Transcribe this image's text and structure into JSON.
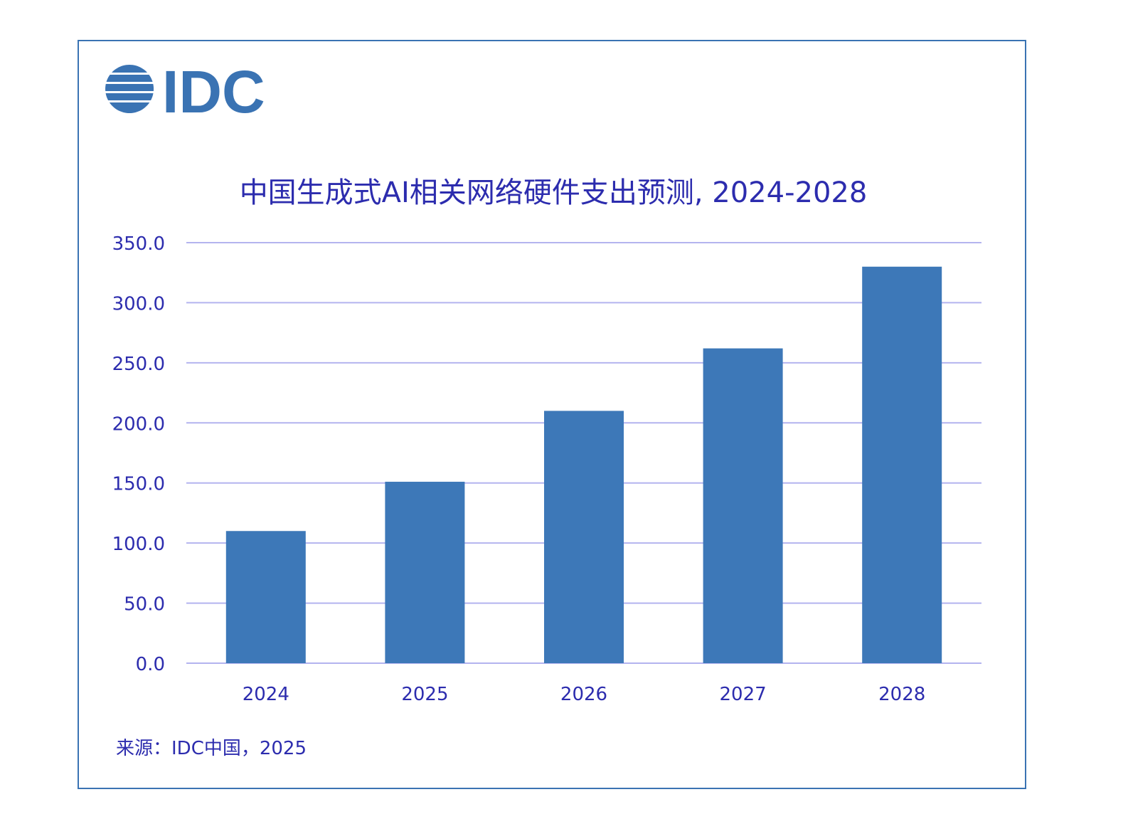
{
  "brand": {
    "logo_text": "IDC",
    "color": "#3a73b3"
  },
  "source": "来源：IDC中国，2025",
  "chart_data": {
    "type": "bar",
    "title": "中国生成式AI相关网络硬件支出预测, 2024-2028",
    "categories": [
      "2024",
      "2025",
      "2026",
      "2027",
      "2028"
    ],
    "values": [
      110.0,
      151.0,
      210.0,
      262.0,
      330.0
    ],
    "ylim": [
      0,
      350
    ],
    "yticks": [
      "0.0",
      "50.0",
      "100.0",
      "150.0",
      "200.0",
      "250.0",
      "300.0",
      "350.0"
    ],
    "bar_color": "#3d78b8",
    "grid_color": "#b4b4ef",
    "text_color": "#2c2cae",
    "grid": true
  }
}
